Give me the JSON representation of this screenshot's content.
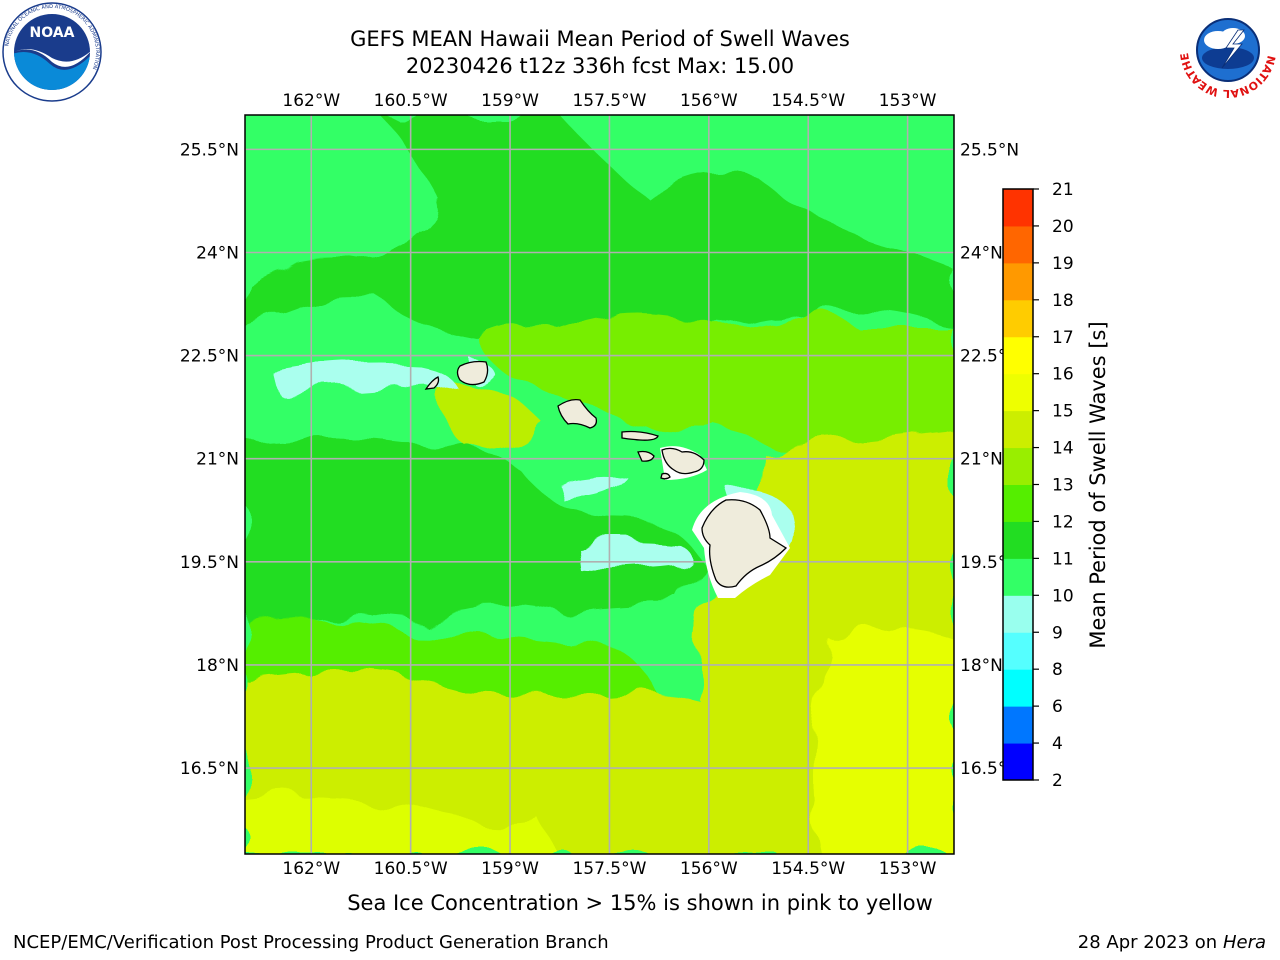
{
  "title": {
    "line1": "GEFS MEAN Hawaii Mean Period of Swell Waves",
    "line2": "20230426 t12z 336h fcst   Max: 15.00"
  },
  "map": {
    "lon_ticks": [
      "162°W",
      "160.5°W",
      "159°W",
      "157.5°W",
      "156°W",
      "154.5°W",
      "153°W"
    ],
    "lat_ticks": [
      "25.5°N",
      "24°N",
      "22.5°N",
      "21°N",
      "19.5°N",
      "18°N",
      "16.5°N"
    ],
    "lon_range": [
      -163,
      -152.3
    ],
    "lat_range": [
      15.25,
      26
    ],
    "land_color": "#efecdc"
  },
  "colorbar": {
    "label": "Mean Period of Swell Waves [s]",
    "ticks": [
      "2",
      "4",
      "6",
      "8",
      "9",
      "10",
      "11",
      "12",
      "13",
      "14",
      "15",
      "16",
      "17",
      "18",
      "19",
      "20",
      "21"
    ],
    "colors": [
      "#0000ff",
      "#0077ff",
      "#00ffff",
      "#55ffff",
      "#99ffee",
      "#33ff66",
      "#22dd22",
      "#55ee00",
      "#99ee00",
      "#ccee00",
      "#eeff00",
      "#ffff00",
      "#ffcc00",
      "#ff9900",
      "#ff6600",
      "#ff3300",
      "#ff0000"
    ]
  },
  "logos": {
    "noaa": "NOAA",
    "nws_ring": "NATIONAL WEATHER SERVICE",
    "noaa_ring": "NATIONAL OCEANIC AND ATMOSPHERIC ADMINISTRATION"
  },
  "footnote": "Sea Ice Concentration > 15% is shown in pink to yellow",
  "credit": "NCEP/EMC/Verification Post Processing Product Generation Branch",
  "date": {
    "text": "28 Apr 2023 on ",
    "machine": "Hera"
  }
}
